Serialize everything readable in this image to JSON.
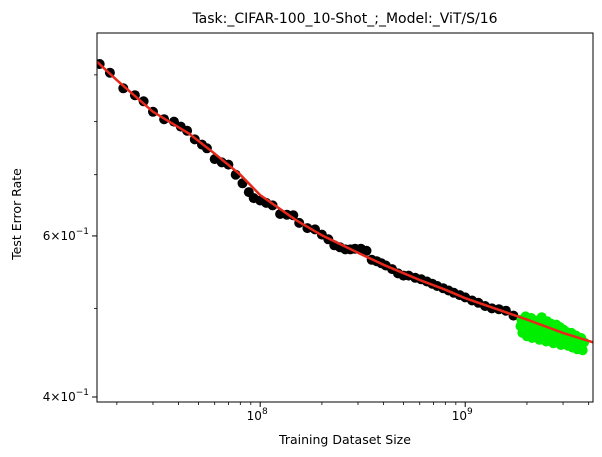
{
  "chart_data": {
    "type": "scatter",
    "title": "Task:_CIFAR-100_10-Shot_;_Model:_ViT/S/16",
    "xlabel": "Training Dataset Size",
    "ylabel": "Test Error Rate",
    "xscale": "log",
    "yscale": "log",
    "xlim": [
      16000000,
      4200000000
    ],
    "ylim": [
      0.395,
      1.0
    ],
    "x_ticks": [
      {
        "value": 100000000,
        "base": "10",
        "exp": "8"
      },
      {
        "value": 1000000000,
        "base": "10",
        "exp": "9"
      }
    ],
    "y_ticks": [
      {
        "value": 0.4,
        "mant": "4",
        "base": "10",
        "exp": "−1"
      },
      {
        "value": 0.6,
        "mant": "6",
        "base": "10",
        "exp": "−1"
      }
    ],
    "grid": false,
    "series": [
      {
        "marker_color": "#000000",
        "points": [
          [
            16500000,
            0.925
          ],
          [
            18500000,
            0.905
          ],
          [
            21500000,
            0.87
          ],
          [
            24500000,
            0.855
          ],
          [
            27000000,
            0.842
          ],
          [
            30000000,
            0.82
          ],
          [
            34000000,
            0.805
          ],
          [
            38000000,
            0.8
          ],
          [
            41000000,
            0.79
          ],
          [
            44000000,
            0.782
          ],
          [
            48000000,
            0.765
          ],
          [
            52000000,
            0.755
          ],
          [
            55000000,
            0.748
          ],
          [
            60000000,
            0.728
          ],
          [
            65000000,
            0.722
          ],
          [
            70000000,
            0.718
          ],
          [
            76000000,
            0.7
          ],
          [
            82000000,
            0.685
          ],
          [
            88000000,
            0.67
          ],
          [
            93000000,
            0.66
          ],
          [
            100000000,
            0.656
          ],
          [
            107000000,
            0.652
          ],
          [
            115000000,
            0.648
          ],
          [
            125000000,
            0.634
          ],
          [
            135000000,
            0.633
          ],
          [
            145000000,
            0.632
          ],
          [
            155000000,
            0.62
          ],
          [
            170000000,
            0.612
          ],
          [
            185000000,
            0.61
          ],
          [
            200000000,
            0.602
          ],
          [
            215000000,
            0.595
          ],
          [
            230000000,
            0.586
          ],
          [
            245000000,
            0.583
          ],
          [
            260000000,
            0.58
          ],
          [
            275000000,
            0.58
          ],
          [
            290000000,
            0.581
          ],
          [
            310000000,
            0.581
          ],
          [
            330000000,
            0.578
          ],
          [
            350000000,
            0.565
          ],
          [
            370000000,
            0.563
          ],
          [
            390000000,
            0.56
          ],
          [
            410000000,
            0.557
          ],
          [
            440000000,
            0.552
          ],
          [
            470000000,
            0.546
          ],
          [
            500000000,
            0.543
          ],
          [
            530000000,
            0.543
          ],
          [
            570000000,
            0.54
          ],
          [
            610000000,
            0.538
          ],
          [
            650000000,
            0.535
          ],
          [
            690000000,
            0.532
          ],
          [
            730000000,
            0.529
          ],
          [
            780000000,
            0.526
          ],
          [
            830000000,
            0.523
          ],
          [
            880000000,
            0.52
          ],
          [
            940000000,
            0.517
          ],
          [
            1000000000,
            0.514
          ],
          [
            1080000000,
            0.51
          ],
          [
            1160000000,
            0.507
          ],
          [
            1250000000,
            0.503
          ],
          [
            1350000000,
            0.5
          ],
          [
            1460000000,
            0.499
          ],
          [
            1580000000,
            0.497
          ],
          [
            1720000000,
            0.491
          ]
        ]
      },
      {
        "marker_color": "#00ee00",
        "points": [
          [
            1860000000,
            0.478
          ],
          [
            1880000000,
            0.486
          ],
          [
            1900000000,
            0.47
          ],
          [
            1920000000,
            0.481
          ],
          [
            1950000000,
            0.474
          ],
          [
            1970000000,
            0.49
          ],
          [
            2000000000,
            0.466
          ],
          [
            2020000000,
            0.483
          ],
          [
            2050000000,
            0.477
          ],
          [
            2070000000,
            0.471
          ],
          [
            2100000000,
            0.488
          ],
          [
            2120000000,
            0.464
          ],
          [
            2150000000,
            0.479
          ],
          [
            2170000000,
            0.473
          ],
          [
            2200000000,
            0.485
          ],
          [
            2230000000,
            0.468
          ],
          [
            2250000000,
            0.476
          ],
          [
            2280000000,
            0.482
          ],
          [
            2300000000,
            0.462
          ],
          [
            2330000000,
            0.471
          ],
          [
            2360000000,
            0.489
          ],
          [
            2390000000,
            0.466
          ],
          [
            2420000000,
            0.478
          ],
          [
            2450000000,
            0.473
          ],
          [
            2480000000,
            0.46
          ],
          [
            2510000000,
            0.484
          ],
          [
            2540000000,
            0.469
          ],
          [
            2570000000,
            0.476
          ],
          [
            2600000000,
            0.463
          ],
          [
            2630000000,
            0.481
          ],
          [
            2660000000,
            0.47
          ],
          [
            2690000000,
            0.458
          ],
          [
            2720000000,
            0.475
          ],
          [
            2750000000,
            0.467
          ],
          [
            2780000000,
            0.48
          ],
          [
            2810000000,
            0.461
          ],
          [
            2840000000,
            0.472
          ],
          [
            2870000000,
            0.466
          ],
          [
            2900000000,
            0.477
          ],
          [
            2930000000,
            0.456
          ],
          [
            2960000000,
            0.469
          ],
          [
            2990000000,
            0.463
          ],
          [
            3020000000,
            0.474
          ],
          [
            3060000000,
            0.459
          ],
          [
            3100000000,
            0.468
          ],
          [
            3140000000,
            0.471
          ],
          [
            3180000000,
            0.455
          ],
          [
            3220000000,
            0.465
          ],
          [
            3260000000,
            0.46
          ],
          [
            3300000000,
            0.47
          ],
          [
            3340000000,
            0.453
          ],
          [
            3380000000,
            0.463
          ],
          [
            3420000000,
            0.458
          ],
          [
            3470000000,
            0.467
          ],
          [
            3520000000,
            0.451
          ],
          [
            3570000000,
            0.461
          ],
          [
            3620000000,
            0.456
          ],
          [
            3680000000,
            0.464
          ],
          [
            3740000000,
            0.45
          ],
          [
            3800000000,
            0.459
          ]
        ]
      },
      {
        "line_color": "#e8271b",
        "line": [
          [
            16000000,
            0.93
          ],
          [
            20000000,
            0.888
          ],
          [
            30000000,
            0.82
          ],
          [
            45000000,
            0.776
          ],
          [
            60000000,
            0.738
          ],
          [
            80000000,
            0.7
          ],
          [
            100000000,
            0.665
          ],
          [
            150000000,
            0.624
          ],
          [
            200000000,
            0.601
          ],
          [
            300000000,
            0.575
          ],
          [
            400000000,
            0.558
          ],
          [
            600000000,
            0.537
          ],
          [
            800000000,
            0.524
          ],
          [
            1000000000,
            0.513
          ],
          [
            1500000000,
            0.497
          ],
          [
            2000000000,
            0.486
          ],
          [
            3000000000,
            0.47
          ],
          [
            4200000000,
            0.459
          ]
        ]
      }
    ]
  }
}
